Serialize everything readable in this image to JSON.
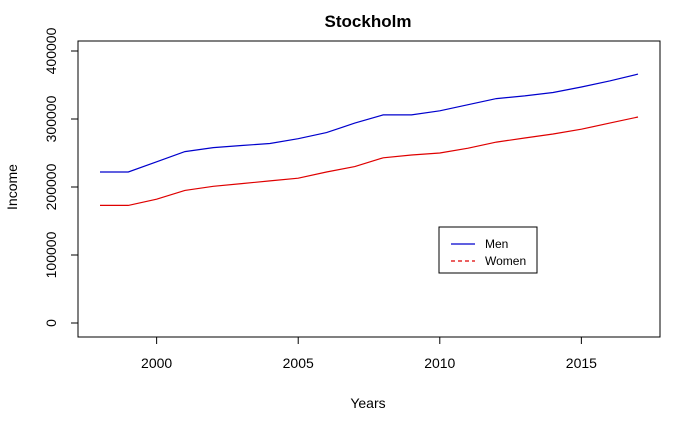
{
  "chart_data": {
    "type": "line",
    "title": "Stockholm",
    "xlabel": "Years",
    "ylabel": "Income",
    "xlim": [
      1998,
      2017
    ],
    "ylim": [
      0,
      400000
    ],
    "x_ticks": [
      2000,
      2005,
      2010,
      2015
    ],
    "y_ticks": [
      0,
      100000,
      200000,
      300000,
      400000
    ],
    "x_tick_labels": [
      "2000",
      "2005",
      "2010",
      "2015"
    ],
    "y_tick_labels": [
      "0",
      "100000",
      "200000",
      "300000",
      "400000"
    ],
    "grid": false,
    "legend_position": "bottom-right",
    "x": [
      1998,
      1999,
      2000,
      2001,
      2002,
      2003,
      2004,
      2005,
      2006,
      2007,
      2008,
      2009,
      2010,
      2011,
      2012,
      2013,
      2014,
      2015,
      2016,
      2017
    ],
    "series": [
      {
        "name": "Men",
        "color": "#0000CD",
        "line_style": "solid",
        "values": [
          222000,
          222000,
          237000,
          252000,
          258000,
          261000,
          264000,
          271000,
          280000,
          294000,
          306000,
          306000,
          312000,
          321000,
          330000,
          334000,
          339000,
          347000,
          356000,
          366000
        ]
      },
      {
        "name": "Women",
        "color": "#DF0000",
        "line_style": "dashed",
        "values": [
          173000,
          173000,
          182000,
          195000,
          201000,
          205000,
          209000,
          213000,
          222000,
          230000,
          243000,
          247000,
          250000,
          257000,
          266000,
          272000,
          278000,
          285000,
          294000,
          303000
        ]
      }
    ]
  }
}
